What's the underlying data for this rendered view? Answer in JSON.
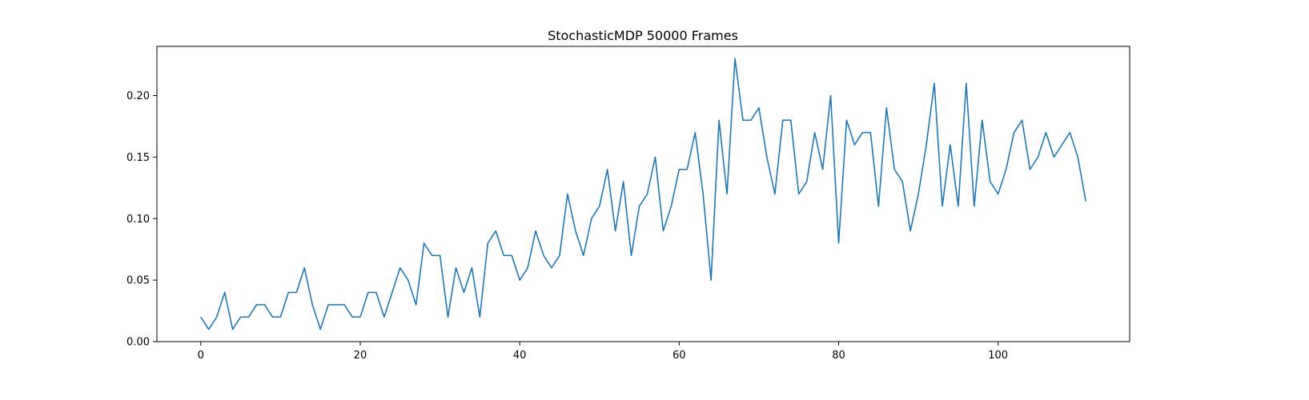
{
  "chart_data": {
    "type": "line",
    "title": "StochasticMDP 50000 Frames",
    "xlabel": "",
    "ylabel": "",
    "xlim": [
      -5.5,
      116.5
    ],
    "ylim": [
      0.0,
      0.24
    ],
    "xticks": [
      0,
      20,
      40,
      60,
      80,
      100
    ],
    "yticks": [
      0.0,
      0.05,
      0.1,
      0.15,
      0.2
    ],
    "ytick_labels": [
      "0.00",
      "0.05",
      "0.10",
      "0.15",
      "0.20"
    ],
    "grid": false,
    "legend": "none",
    "series": [
      {
        "color": "#1f77b4",
        "x": [
          0,
          1,
          2,
          3,
          4,
          5,
          6,
          7,
          8,
          9,
          10,
          11,
          12,
          13,
          14,
          15,
          16,
          17,
          18,
          19,
          20,
          21,
          22,
          23,
          24,
          25,
          26,
          27,
          28,
          29,
          30,
          31,
          32,
          33,
          34,
          35,
          36,
          37,
          38,
          39,
          40,
          41,
          42,
          43,
          44,
          45,
          46,
          47,
          48,
          49,
          50,
          51,
          52,
          53,
          54,
          55,
          56,
          57,
          58,
          59,
          60,
          61,
          62,
          63,
          64,
          65,
          66,
          67,
          68,
          69,
          70,
          71,
          72,
          73,
          74,
          75,
          76,
          77,
          78,
          79,
          80,
          81,
          82,
          83,
          84,
          85,
          86,
          87,
          88,
          89,
          90,
          91,
          92,
          93,
          94,
          95,
          96,
          97,
          98,
          99,
          100,
          101,
          102,
          103,
          104,
          105,
          106,
          107,
          108,
          109,
          110,
          111
        ],
        "values": [
          0.02,
          0.01,
          0.02,
          0.04,
          0.01,
          0.02,
          0.02,
          0.03,
          0.03,
          0.02,
          0.02,
          0.04,
          0.04,
          0.06,
          0.03,
          0.01,
          0.03,
          0.03,
          0.03,
          0.02,
          0.02,
          0.04,
          0.04,
          0.02,
          0.04,
          0.06,
          0.05,
          0.03,
          0.08,
          0.07,
          0.07,
          0.02,
          0.06,
          0.04,
          0.06,
          0.02,
          0.08,
          0.09,
          0.07,
          0.07,
          0.05,
          0.06,
          0.09,
          0.07,
          0.06,
          0.07,
          0.12,
          0.09,
          0.07,
          0.1,
          0.11,
          0.14,
          0.09,
          0.13,
          0.07,
          0.11,
          0.12,
          0.15,
          0.09,
          0.11,
          0.14,
          0.14,
          0.17,
          0.12,
          0.05,
          0.18,
          0.12,
          0.23,
          0.18,
          0.18,
          0.19,
          0.15,
          0.12,
          0.18,
          0.18,
          0.12,
          0.13,
          0.17,
          0.14,
          0.2,
          0.08,
          0.18,
          0.16,
          0.17,
          0.17,
          0.11,
          0.19,
          0.14,
          0.13,
          0.09,
          0.12,
          0.16,
          0.21,
          0.11,
          0.16,
          0.11,
          0.21,
          0.11,
          0.18,
          0.13,
          0.12,
          0.14,
          0.17,
          0.18,
          0.14,
          0.15,
          0.17,
          0.15,
          0.16,
          0.17,
          0.15,
          0.114
        ]
      }
    ]
  }
}
